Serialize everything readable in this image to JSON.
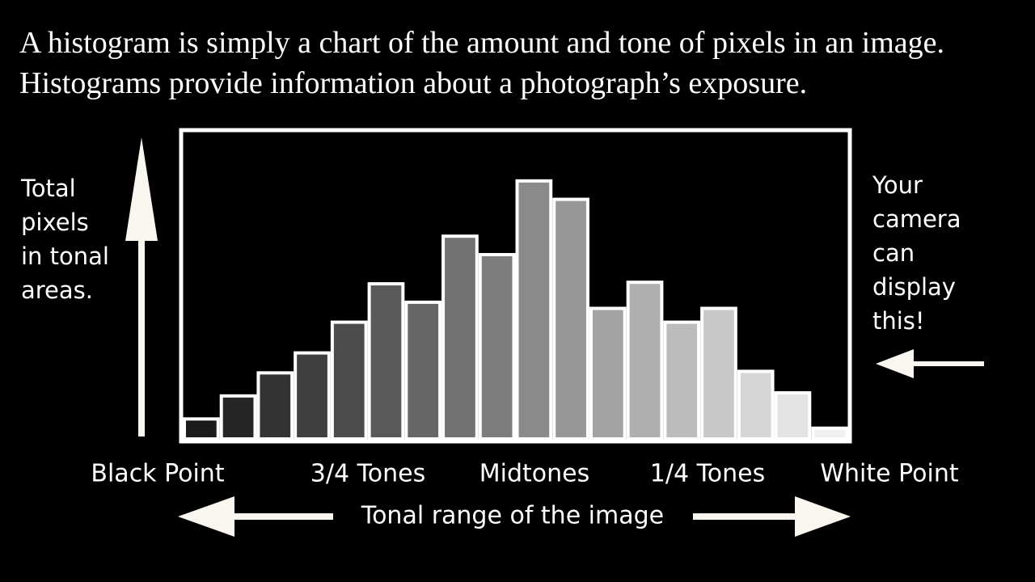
{
  "chart_data": {
    "type": "bar",
    "title": "A histogram is simply a chart of the amount and tone of pixels in an image. Histograms provide information about a photograph’s exposure.",
    "y_label": "Total pixels in tonal areas.",
    "note": "Your camera can display this!",
    "x_labels": [
      "Black Point",
      "3/4 Tones",
      "Midtones",
      "1/4 Tones",
      "White Point"
    ],
    "x_label": "Tonal range of the image",
    "values": [
      6.5,
      14,
      21.5,
      28,
      38,
      50.5,
      44.5,
      66,
      60,
      84,
      78,
      42.5,
      51,
      38,
      42.5,
      22,
      15,
      3.5
    ],
    "colors": [
      "#1a1a1a",
      "#262626",
      "#333333",
      "#404040",
      "#4c4c4c",
      "#595959",
      "#666666",
      "#727272",
      "#7d7d7d",
      "#8a8a8a",
      "#979797",
      "#a3a3a3",
      "#afafaf",
      "#bcbcbc",
      "#c8c8c8",
      "#d6d6d6",
      "#e3e3e3",
      "#f0f0f0"
    ]
  }
}
